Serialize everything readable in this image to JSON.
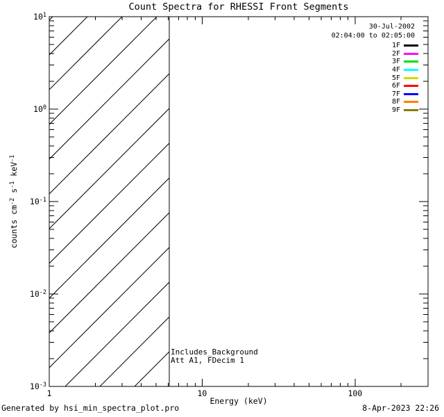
{
  "chart_data": {
    "type": "line",
    "title": "Count Spectra for RHESSI Front Segments",
    "xlabel": "Energy (keV)",
    "ylabel_parts": [
      {
        "text": "counts cm",
        "sup": "-2"
      },
      {
        "text": " s",
        "sup": "-1"
      },
      {
        "text": " keV",
        "sup": "-1"
      }
    ],
    "xscale": "log",
    "yscale": "log",
    "xlim": [
      1,
      300
    ],
    "ylim": [
      0.001,
      10
    ],
    "grid": false,
    "x_ticks": [
      {
        "value": 1,
        "label": "1"
      },
      {
        "value": 10,
        "label": "10"
      },
      {
        "value": 100,
        "label": "100"
      }
    ],
    "y_ticks": [
      {
        "value": 10,
        "base": "10",
        "exp": "1"
      },
      {
        "value": 1,
        "base": "10",
        "exp": "0"
      },
      {
        "value": 0.1,
        "base": "10",
        "exp": "-1"
      },
      {
        "value": 0.01,
        "base": "10",
        "exp": "-2"
      },
      {
        "value": 0.001,
        "base": "10",
        "exp": "-3"
      }
    ],
    "series": [],
    "plot_area_note": "no data curves drawn; area empty except hatched low-energy region",
    "hatch_region": {
      "x_min": 1,
      "x_max": 6.1,
      "style": "diagonal-45deg-lines",
      "boundary_line": true
    },
    "legend": {
      "position": "top-right-inside",
      "date": "30-Jul-2002",
      "time_range": "02:04:00 to 02:05:00",
      "entries": [
        {
          "label": "1F",
          "color": "#000000"
        },
        {
          "label": "2F",
          "color": "#ff00ff"
        },
        {
          "label": "3F",
          "color": "#00dd00"
        },
        {
          "label": "4F",
          "color": "#00ffff"
        },
        {
          "label": "5F",
          "color": "#d6d600"
        },
        {
          "label": "6F",
          "color": "#ff0000"
        },
        {
          "label": "7F",
          "color": "#0000ff"
        },
        {
          "label": "8F",
          "color": "#ff8000"
        },
        {
          "label": "9F",
          "color": "#808000"
        }
      ]
    },
    "annotations": [
      "Includes_Background",
      "Att A1, FDecim 1"
    ],
    "axis_color": "#000000",
    "background": "#ffffff"
  },
  "footer": {
    "left": "Generated by hsi_min_spectra_plot.pro",
    "right": "8-Apr-2023 22:26"
  }
}
